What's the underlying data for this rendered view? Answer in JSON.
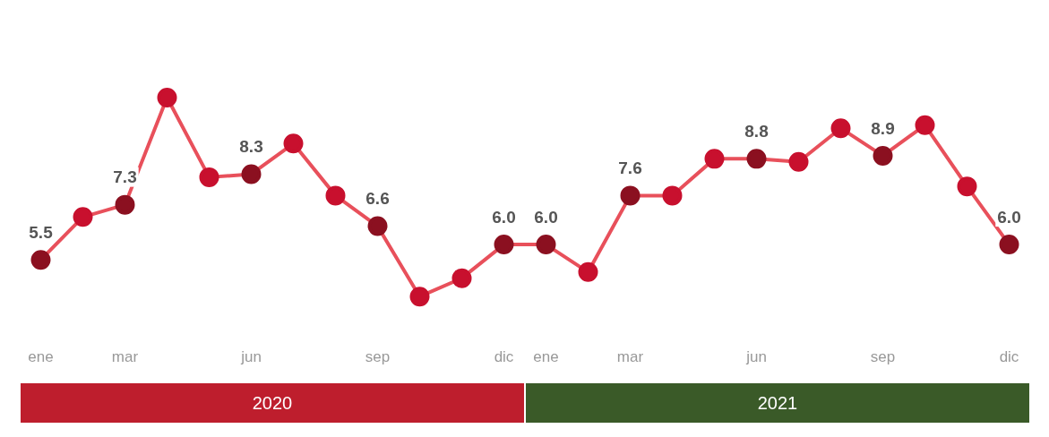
{
  "chart_data": {
    "type": "line",
    "categories": [
      "ene",
      null,
      "mar",
      null,
      null,
      "jun",
      null,
      null,
      "sep",
      null,
      null,
      "dic",
      "ene",
      null,
      "mar",
      null,
      null,
      "jun",
      null,
      null,
      "sep",
      null,
      null,
      "dic"
    ],
    "series": [
      {
        "color": "#e8505b",
        "colors": [
          "#8b1020",
          "#c8102e",
          "#8b1020",
          "#c8102e",
          "#c8102e",
          "#8b1020",
          "#c8102e",
          "#c8102e",
          "#8b1020",
          "#c8102e",
          "#c8102e",
          "#8b1020",
          "#8b1020",
          "#c8102e",
          "#8b1020",
          "#c8102e",
          "#c8102e",
          "#8b1020",
          "#c8102e",
          "#c8102e",
          "#8b1020",
          "#c8102e",
          "#c8102e",
          "#8b1020"
        ],
        "values": [
          5.5,
          6.9,
          7.3,
          10.8,
          8.2,
          8.3,
          9.3,
          7.6,
          6.6,
          4.3,
          4.9,
          6.0,
          6.0,
          5.1,
          7.6,
          7.6,
          8.8,
          8.8,
          8.7,
          9.8,
          8.9,
          9.9,
          7.9,
          6.0
        ],
        "value_labels": [
          "5.5",
          null,
          "7.3",
          null,
          null,
          "8.3",
          null,
          null,
          "6.6",
          null,
          null,
          "6.0",
          "6.0",
          null,
          "7.6",
          null,
          null,
          "8.8",
          null,
          null,
          "8.9",
          null,
          null,
          "6.0"
        ]
      }
    ],
    "annotations": [
      "2020",
      "2021"
    ],
    "marker": "circle",
    "line_style": "solid",
    "grid": false,
    "legend": false
  }
}
